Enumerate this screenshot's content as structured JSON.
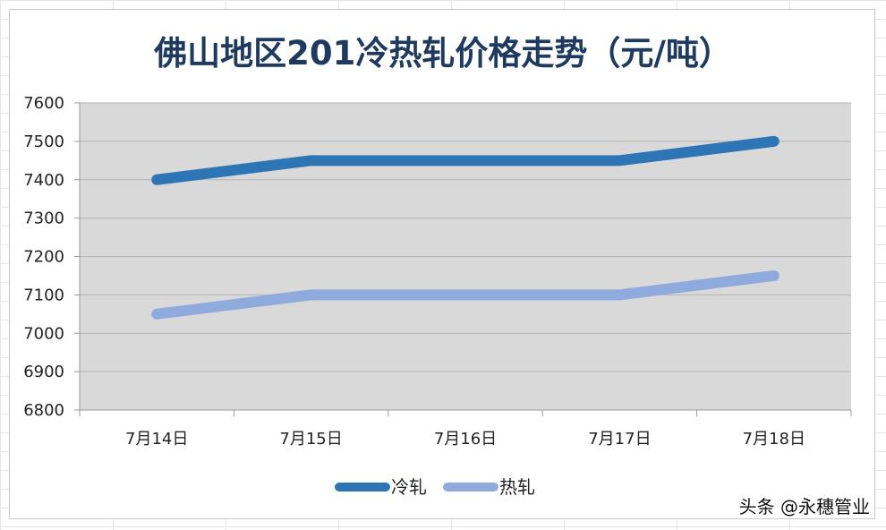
{
  "watermark": "头条 @永穗管业",
  "chart_data": {
    "type": "line",
    "title": "佛山地区201冷热轧价格走势（元/吨）",
    "categories": [
      "7月14日",
      "7月15日",
      "7月16日",
      "7月17日",
      "7月18日"
    ],
    "series": [
      {
        "name": "冷轧",
        "values": [
          7400,
          7450,
          7450,
          7450,
          7500
        ],
        "color": "#2e75b6"
      },
      {
        "name": "热轧",
        "values": [
          7050,
          7100,
          7100,
          7100,
          7150
        ],
        "color": "#8faadc"
      }
    ],
    "ylim": [
      6800,
      7600
    ],
    "yticks": [
      6800,
      6900,
      7000,
      7100,
      7200,
      7300,
      7400,
      7500,
      7600
    ],
    "xlabel": "",
    "ylabel": "",
    "grid": true,
    "plot_background": "#d9d9d9",
    "legend_position": "bottom"
  }
}
